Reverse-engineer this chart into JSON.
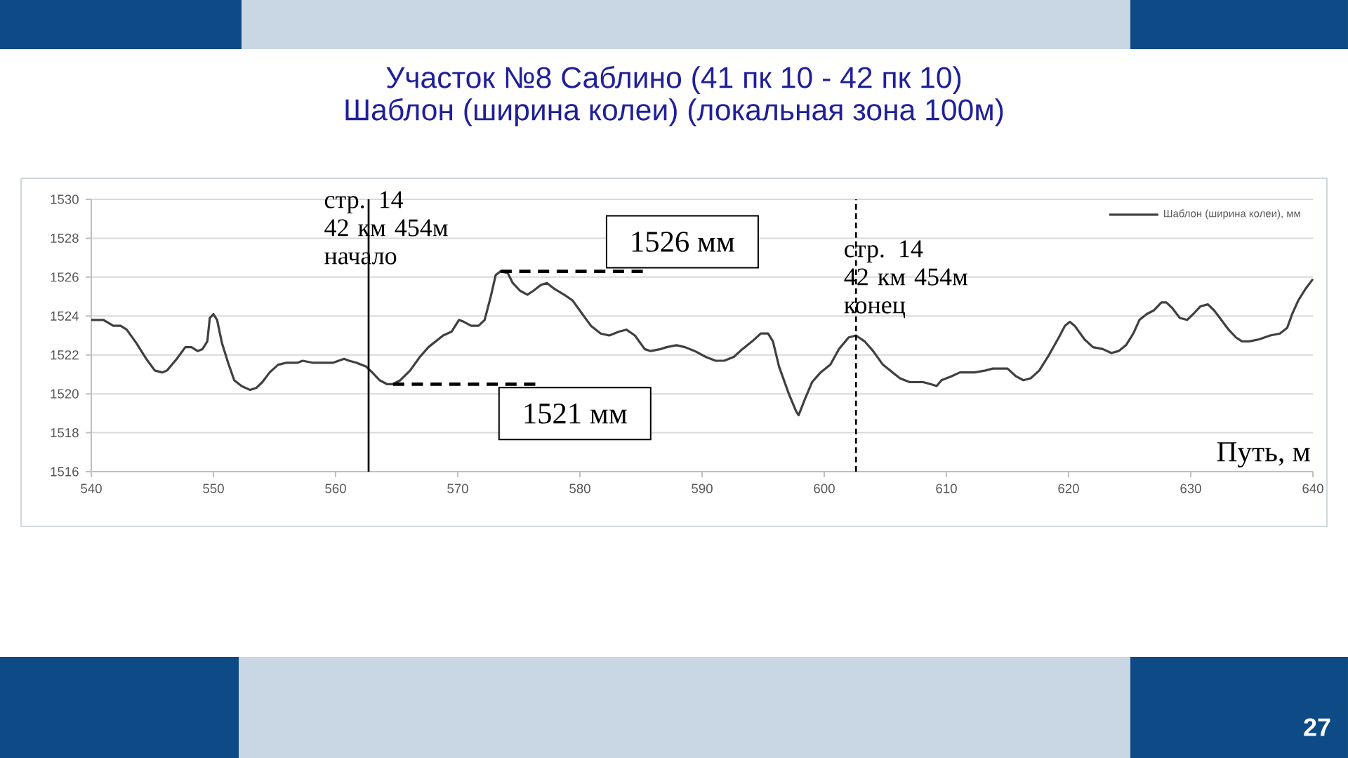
{
  "chart_data": {
    "type": "line",
    "title": "Участок №8 Саблино (41 пк 10 - 42 пк 10)",
    "subtitle": "Шаблон (ширина колеи) (локальная зона 100м)",
    "xlabel": "Путь, м",
    "x": [
      540.0,
      541.0,
      541.8,
      542.4,
      542.9,
      543.7,
      544.5,
      545.2,
      545.8,
      546.2,
      547.0,
      547.7,
      548.2,
      548.7,
      549.1,
      549.5,
      549.7,
      550.0,
      550.3,
      550.7,
      551.2,
      551.7,
      552.3,
      553.0,
      553.5,
      554.0,
      554.6,
      555.3,
      556.0,
      556.9,
      557.3,
      558.1,
      559.8,
      560.7,
      561.1,
      561.7,
      562.5,
      563.0,
      563.6,
      564.2,
      564.7,
      565.3,
      566.1,
      566.9,
      567.6,
      568.8,
      569.5,
      570.1,
      570.5,
      571.1,
      571.7,
      572.2,
      572.7,
      573.1,
      573.5,
      574.1,
      574.5,
      575.1,
      575.7,
      576.2,
      576.8,
      577.3,
      577.9,
      578.7,
      579.4,
      580.2,
      580.9,
      581.7,
      582.4,
      583.2,
      583.8,
      584.5,
      585.3,
      585.8,
      586.6,
      587.1,
      587.9,
      588.6,
      589.4,
      590.3,
      591.1,
      591.8,
      592.6,
      593.3,
      594.1,
      594.8,
      595.4,
      595.8,
      596.3,
      597.1,
      597.7,
      597.9,
      598.4,
      599.0,
      599.7,
      600.5,
      601.2,
      602.0,
      602.6,
      603.3,
      604.0,
      604.8,
      605.6,
      606.2,
      607.0,
      608.1,
      608.7,
      609.2,
      609.6,
      610.4,
      611.1,
      612.3,
      613.2,
      613.8,
      615.0,
      615.7,
      616.3,
      616.9,
      617.6,
      618.4,
      619.2,
      619.7,
      620.1,
      620.5,
      621.3,
      622.0,
      622.8,
      623.5,
      624.1,
      624.7,
      625.3,
      625.8,
      626.4,
      627.0,
      627.6,
      628.0,
      628.5,
      629.1,
      629.7,
      630.2,
      630.8,
      631.4,
      631.9,
      632.5,
      633.1,
      633.7,
      634.2,
      634.8,
      635.6,
      636.5,
      637.3,
      637.9,
      638.3,
      638.8,
      639.4,
      640.0
    ],
    "series": [
      {
        "name": "Шаблон (ширина колеи), мм",
        "color": "#404040",
        "values": [
          1523.8,
          1523.8,
          1523.5,
          1523.5,
          1523.3,
          1522.6,
          1521.8,
          1521.2,
          1521.1,
          1521.2,
          1521.8,
          1522.4,
          1522.4,
          1522.2,
          1522.3,
          1522.7,
          1523.9,
          1524.1,
          1523.8,
          1522.6,
          1521.6,
          1520.7,
          1520.4,
          1520.2,
          1520.3,
          1520.6,
          1521.1,
          1521.5,
          1521.6,
          1521.6,
          1521.7,
          1521.6,
          1521.6,
          1521.8,
          1521.7,
          1521.6,
          1521.4,
          1521.1,
          1520.7,
          1520.5,
          1520.5,
          1520.7,
          1521.2,
          1521.9,
          1522.4,
          1523.0,
          1523.2,
          1523.8,
          1523.7,
          1523.5,
          1523.5,
          1523.8,
          1525.0,
          1526.1,
          1526.3,
          1526.2,
          1525.7,
          1525.3,
          1525.1,
          1525.3,
          1525.6,
          1525.7,
          1525.4,
          1525.1,
          1524.8,
          1524.1,
          1523.5,
          1523.1,
          1523.0,
          1523.2,
          1523.3,
          1523.0,
          1522.3,
          1522.2,
          1522.3,
          1522.4,
          1522.5,
          1522.4,
          1522.2,
          1521.9,
          1521.7,
          1521.7,
          1521.9,
          1522.3,
          1522.7,
          1523.1,
          1523.1,
          1522.7,
          1521.4,
          1520.0,
          1519.1,
          1518.9,
          1519.7,
          1520.6,
          1521.1,
          1521.5,
          1522.3,
          1522.9,
          1523.0,
          1522.7,
          1522.2,
          1521.5,
          1521.1,
          1520.8,
          1520.6,
          1520.6,
          1520.5,
          1520.4,
          1520.7,
          1520.9,
          1521.1,
          1521.1,
          1521.2,
          1521.3,
          1521.3,
          1520.9,
          1520.7,
          1520.8,
          1521.2,
          1522.0,
          1522.9,
          1523.5,
          1523.7,
          1523.5,
          1522.8,
          1522.4,
          1522.3,
          1522.1,
          1522.2,
          1522.5,
          1523.1,
          1523.8,
          1524.1,
          1524.3,
          1524.7,
          1524.7,
          1524.4,
          1523.9,
          1523.8,
          1524.1,
          1524.5,
          1524.6,
          1524.3,
          1523.8,
          1523.3,
          1522.9,
          1522.7,
          1522.7,
          1522.8,
          1523.0,
          1523.1,
          1523.4,
          1524.1,
          1524.8,
          1525.4,
          1525.9
        ]
      }
    ],
    "xlim": [
      540,
      640
    ],
    "xticks": [
      540,
      550,
      560,
      570,
      580,
      590,
      600,
      610,
      620,
      630,
      640
    ],
    "ylim": [
      1516,
      1530
    ],
    "yticks": [
      1516,
      1518,
      1520,
      1522,
      1524,
      1526,
      1528,
      1530
    ],
    "grid": "y",
    "legend": "top right",
    "ref_lines": [
      {
        "axis": "x",
        "value": 562.7,
        "label": "стр. 14\n42 км 454м\nначало",
        "color": "#000000",
        "line_style": "solid"
      },
      {
        "axis": "x",
        "value": 602.6,
        "label": "стр. 14\n42 км 454м\nконец",
        "color": "#000000",
        "line_style": "dashed"
      }
    ],
    "annotations": [
      {
        "text": "1526 мм",
        "x": 573.5,
        "y": 1526.3
      },
      {
        "text": "1521 мм",
        "x": 564.7,
        "y": 1520.5
      },
      "27"
    ]
  }
}
